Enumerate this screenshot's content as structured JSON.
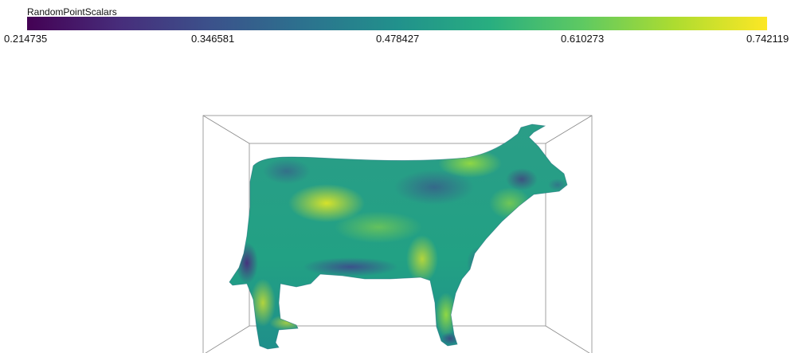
{
  "scalar_bar": {
    "title": "RandomPointScalars",
    "ticks": [
      "0.214735",
      "0.346581",
      "0.478427",
      "0.610273",
      "0.742119"
    ],
    "range": [
      0.214735,
      0.742119
    ],
    "colormap": "viridis",
    "colors": [
      "#440154",
      "#3b528b",
      "#21918c",
      "#5ec962",
      "#fde725"
    ]
  },
  "scene": {
    "object": "cow-mesh",
    "bounding_box_color": "#888888"
  }
}
